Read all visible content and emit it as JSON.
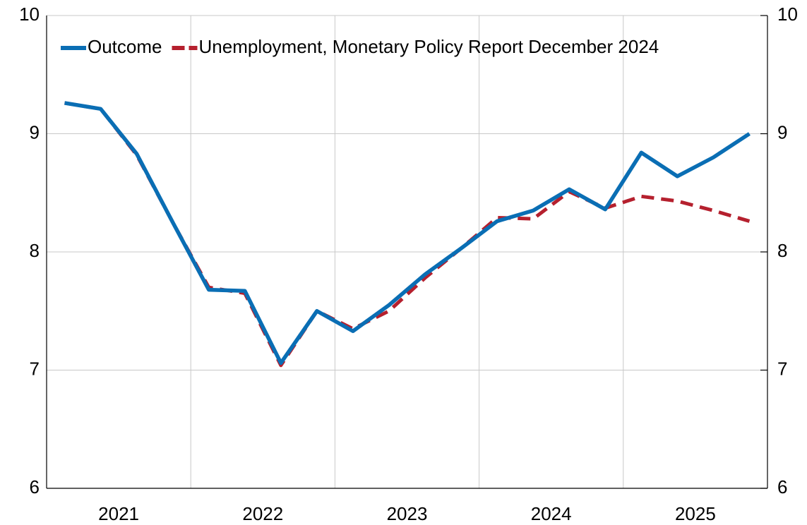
{
  "chart_data": {
    "type": "line",
    "categories": [
      "2021",
      null,
      null,
      null,
      "2022",
      null,
      null,
      null,
      "2023",
      null,
      null,
      null,
      "2024",
      null,
      null,
      null,
      "2025",
      null,
      null,
      null
    ],
    "series": [
      {
        "name": "Outcome",
        "color": "#0a6eb4",
        "dashed": false,
        "values": [
          9.26,
          9.21,
          8.83,
          8.25,
          7.68,
          7.67,
          7.06,
          7.5,
          7.33,
          7.55,
          7.81,
          8.03,
          8.26,
          8.35,
          8.53,
          8.36,
          8.84,
          8.64,
          8.8,
          9.0
        ]
      },
      {
        "name": "Unemployment, Monetary Policy Report December 2024",
        "color": "#b5202e",
        "dashed": true,
        "values": [
          9.26,
          9.21,
          8.82,
          8.25,
          7.7,
          7.65,
          7.04,
          7.5,
          7.35,
          7.5,
          7.78,
          8.03,
          8.29,
          8.28,
          8.51,
          8.37,
          8.47,
          8.43,
          8.35,
          8.26
        ]
      }
    ],
    "ylim": [
      6,
      10
    ],
    "yticks": [
      6,
      7,
      8,
      9,
      10
    ],
    "y2lim": [
      6,
      10
    ],
    "y2ticks": [
      6,
      7,
      8,
      9,
      10
    ],
    "grid": true,
    "legend": "top-left"
  }
}
